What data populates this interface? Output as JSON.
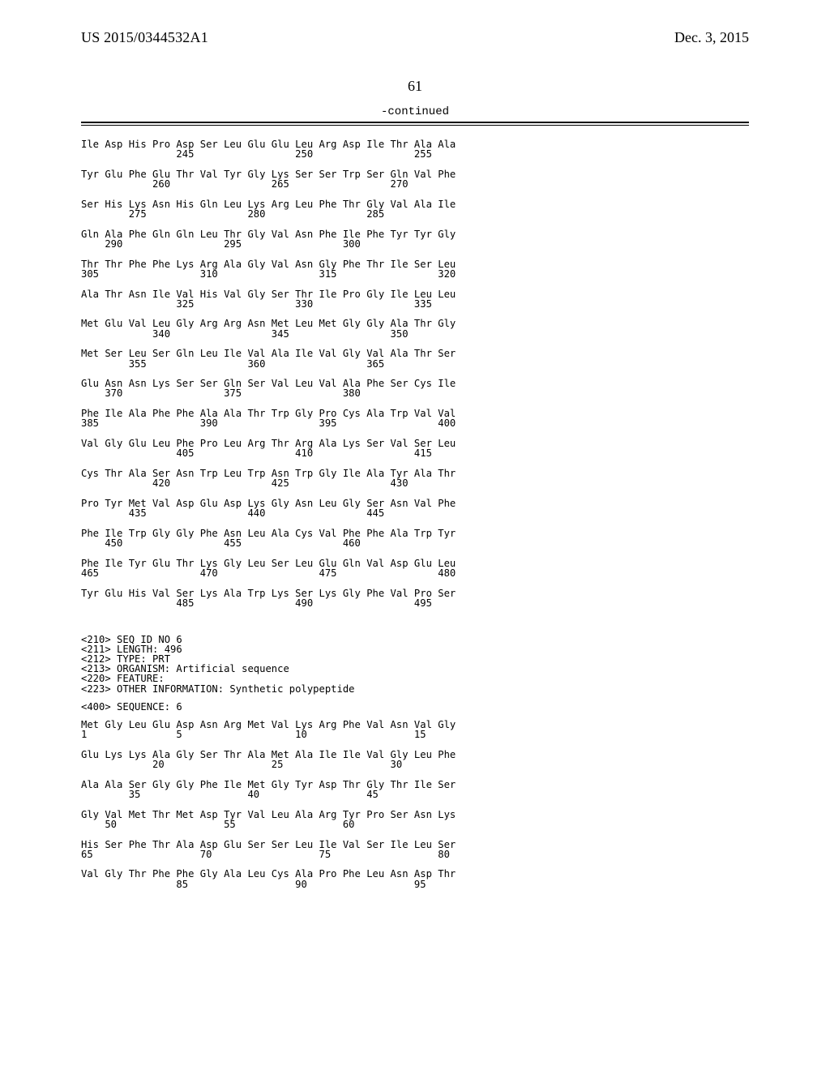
{
  "header": {
    "left": "US 2015/0344532A1",
    "right": "Dec. 3, 2015",
    "page_number": "61",
    "continued": "-continued"
  },
  "layout": {
    "col_width_ch": 4,
    "first_indent_ch": 0
  },
  "blocks": [
    {
      "type": "seqpair",
      "start": 241,
      "aa": [
        "Ile",
        "Asp",
        "His",
        "Pro",
        "Asp",
        "Ser",
        "Leu",
        "Glu",
        "Glu",
        "Leu",
        "Arg",
        "Asp",
        "Ile",
        "Thr",
        "Ala",
        "Ala"
      ],
      "num_positions": [
        245,
        250,
        255
      ]
    },
    {
      "type": "seqpair",
      "start": 257,
      "aa": [
        "Tyr",
        "Glu",
        "Phe",
        "Glu",
        "Thr",
        "Val",
        "Tyr",
        "Gly",
        "Lys",
        "Ser",
        "Ser",
        "Trp",
        "Ser",
        "Gln",
        "Val",
        "Phe"
      ],
      "num_positions": [
        260,
        265,
        270
      ]
    },
    {
      "type": "seqpair",
      "start": 273,
      "aa": [
        "Ser",
        "His",
        "Lys",
        "Asn",
        "His",
        "Gln",
        "Leu",
        "Lys",
        "Arg",
        "Leu",
        "Phe",
        "Thr",
        "Gly",
        "Val",
        "Ala",
        "Ile"
      ],
      "num_positions": [
        275,
        280,
        285
      ]
    },
    {
      "type": "seqpair",
      "start": 289,
      "aa": [
        "Gln",
        "Ala",
        "Phe",
        "Gln",
        "Gln",
        "Leu",
        "Thr",
        "Gly",
        "Val",
        "Asn",
        "Phe",
        "Ile",
        "Phe",
        "Tyr",
        "Tyr",
        "Gly"
      ],
      "num_positions": [
        290,
        295,
        300
      ]
    },
    {
      "type": "seqpair",
      "start": 305,
      "aa": [
        "Thr",
        "Thr",
        "Phe",
        "Phe",
        "Lys",
        "Arg",
        "Ala",
        "Gly",
        "Val",
        "Asn",
        "Gly",
        "Phe",
        "Thr",
        "Ile",
        "Ser",
        "Leu"
      ],
      "num_positions": [
        305,
        310,
        315,
        320
      ]
    },
    {
      "type": "seqpair",
      "start": 321,
      "aa": [
        "Ala",
        "Thr",
        "Asn",
        "Ile",
        "Val",
        "His",
        "Val",
        "Gly",
        "Ser",
        "Thr",
        "Ile",
        "Pro",
        "Gly",
        "Ile",
        "Leu",
        "Leu"
      ],
      "num_positions": [
        325,
        330,
        335
      ]
    },
    {
      "type": "seqpair",
      "start": 337,
      "aa": [
        "Met",
        "Glu",
        "Val",
        "Leu",
        "Gly",
        "Arg",
        "Arg",
        "Asn",
        "Met",
        "Leu",
        "Met",
        "Gly",
        "Gly",
        "Ala",
        "Thr",
        "Gly"
      ],
      "num_positions": [
        340,
        345,
        350
      ]
    },
    {
      "type": "seqpair",
      "start": 353,
      "aa": [
        "Met",
        "Ser",
        "Leu",
        "Ser",
        "Gln",
        "Leu",
        "Ile",
        "Val",
        "Ala",
        "Ile",
        "Val",
        "Gly",
        "Val",
        "Ala",
        "Thr",
        "Ser"
      ],
      "num_positions": [
        355,
        360,
        365
      ]
    },
    {
      "type": "seqpair",
      "start": 369,
      "aa": [
        "Glu",
        "Asn",
        "Asn",
        "Lys",
        "Ser",
        "Ser",
        "Gln",
        "Ser",
        "Val",
        "Leu",
        "Val",
        "Ala",
        "Phe",
        "Ser",
        "Cys",
        "Ile"
      ],
      "num_positions": [
        370,
        375,
        380
      ]
    },
    {
      "type": "seqpair",
      "start": 385,
      "aa": [
        "Phe",
        "Ile",
        "Ala",
        "Phe",
        "Phe",
        "Ala",
        "Ala",
        "Thr",
        "Trp",
        "Gly",
        "Pro",
        "Cys",
        "Ala",
        "Trp",
        "Val",
        "Val"
      ],
      "num_positions": [
        385,
        390,
        395,
        400
      ]
    },
    {
      "type": "seqpair",
      "start": 401,
      "aa": [
        "Val",
        "Gly",
        "Glu",
        "Leu",
        "Phe",
        "Pro",
        "Leu",
        "Arg",
        "Thr",
        "Arg",
        "Ala",
        "Lys",
        "Ser",
        "Val",
        "Ser",
        "Leu"
      ],
      "num_positions": [
        405,
        410,
        415
      ]
    },
    {
      "type": "seqpair",
      "start": 417,
      "aa": [
        "Cys",
        "Thr",
        "Ala",
        "Ser",
        "Asn",
        "Trp",
        "Leu",
        "Trp",
        "Asn",
        "Trp",
        "Gly",
        "Ile",
        "Ala",
        "Tyr",
        "Ala",
        "Thr"
      ],
      "num_positions": [
        420,
        425,
        430
      ]
    },
    {
      "type": "seqpair",
      "start": 433,
      "aa": [
        "Pro",
        "Tyr",
        "Met",
        "Val",
        "Asp",
        "Glu",
        "Asp",
        "Lys",
        "Gly",
        "Asn",
        "Leu",
        "Gly",
        "Ser",
        "Asn",
        "Val",
        "Phe"
      ],
      "num_positions": [
        435,
        440,
        445
      ]
    },
    {
      "type": "seqpair",
      "start": 449,
      "aa": [
        "Phe",
        "Ile",
        "Trp",
        "Gly",
        "Gly",
        "Phe",
        "Asn",
        "Leu",
        "Ala",
        "Cys",
        "Val",
        "Phe",
        "Phe",
        "Ala",
        "Trp",
        "Tyr"
      ],
      "num_positions": [
        450,
        455,
        460
      ]
    },
    {
      "type": "seqpair",
      "start": 465,
      "aa": [
        "Phe",
        "Ile",
        "Tyr",
        "Glu",
        "Thr",
        "Lys",
        "Gly",
        "Leu",
        "Ser",
        "Leu",
        "Glu",
        "Gln",
        "Val",
        "Asp",
        "Glu",
        "Leu"
      ],
      "num_positions": [
        465,
        470,
        475,
        480
      ]
    },
    {
      "type": "seqpair",
      "start": 481,
      "aa": [
        "Tyr",
        "Glu",
        "His",
        "Val",
        "Ser",
        "Lys",
        "Ala",
        "Trp",
        "Lys",
        "Ser",
        "Lys",
        "Gly",
        "Phe",
        "Val",
        "Pro",
        "Ser"
      ],
      "num_positions": [
        485,
        490,
        495
      ]
    },
    {
      "type": "metagap"
    },
    {
      "type": "metagap"
    },
    {
      "type": "meta",
      "text": "<210> SEQ ID NO 6"
    },
    {
      "type": "meta",
      "text": "<211> LENGTH: 496"
    },
    {
      "type": "meta",
      "text": "<212> TYPE: PRT"
    },
    {
      "type": "meta",
      "text": "<213> ORGANISM: Artificial sequence"
    },
    {
      "type": "meta",
      "text": "<220> FEATURE:"
    },
    {
      "type": "meta",
      "text": "<223> OTHER INFORMATION: Synthetic polypeptide"
    },
    {
      "type": "metagap"
    },
    {
      "type": "meta",
      "text": "<400> SEQUENCE: 6"
    },
    {
      "type": "metagap"
    },
    {
      "type": "seqpair",
      "start": 1,
      "aa": [
        "Met",
        "Gly",
        "Leu",
        "Glu",
        "Asp",
        "Asn",
        "Arg",
        "Met",
        "Val",
        "Lys",
        "Arg",
        "Phe",
        "Val",
        "Asn",
        "Val",
        "Gly"
      ],
      "num_positions": [
        1,
        5,
        10,
        15
      ]
    },
    {
      "type": "seqpair",
      "start": 17,
      "aa": [
        "Glu",
        "Lys",
        "Lys",
        "Ala",
        "Gly",
        "Ser",
        "Thr",
        "Ala",
        "Met",
        "Ala",
        "Ile",
        "Ile",
        "Val",
        "Gly",
        "Leu",
        "Phe"
      ],
      "num_positions": [
        20,
        25,
        30
      ]
    },
    {
      "type": "seqpair",
      "start": 33,
      "aa": [
        "Ala",
        "Ala",
        "Ser",
        "Gly",
        "Gly",
        "Phe",
        "Ile",
        "Met",
        "Gly",
        "Tyr",
        "Asp",
        "Thr",
        "Gly",
        "Thr",
        "Ile",
        "Ser"
      ],
      "num_positions": [
        35,
        40,
        45
      ]
    },
    {
      "type": "seqpair",
      "start": 49,
      "aa": [
        "Gly",
        "Val",
        "Met",
        "Thr",
        "Met",
        "Asp",
        "Tyr",
        "Val",
        "Leu",
        "Ala",
        "Arg",
        "Tyr",
        "Pro",
        "Ser",
        "Asn",
        "Lys"
      ],
      "num_positions": [
        50,
        55,
        60
      ]
    },
    {
      "type": "seqpair",
      "start": 65,
      "aa": [
        "His",
        "Ser",
        "Phe",
        "Thr",
        "Ala",
        "Asp",
        "Glu",
        "Ser",
        "Ser",
        "Leu",
        "Ile",
        "Val",
        "Ser",
        "Ile",
        "Leu",
        "Ser"
      ],
      "num_positions": [
        65,
        70,
        75,
        80
      ]
    },
    {
      "type": "seqpair",
      "start": 81,
      "aa": [
        "Val",
        "Gly",
        "Thr",
        "Phe",
        "Phe",
        "Gly",
        "Ala",
        "Leu",
        "Cys",
        "Ala",
        "Pro",
        "Phe",
        "Leu",
        "Asn",
        "Asp",
        "Thr"
      ],
      "num_positions": [
        85,
        90,
        95
      ]
    }
  ]
}
